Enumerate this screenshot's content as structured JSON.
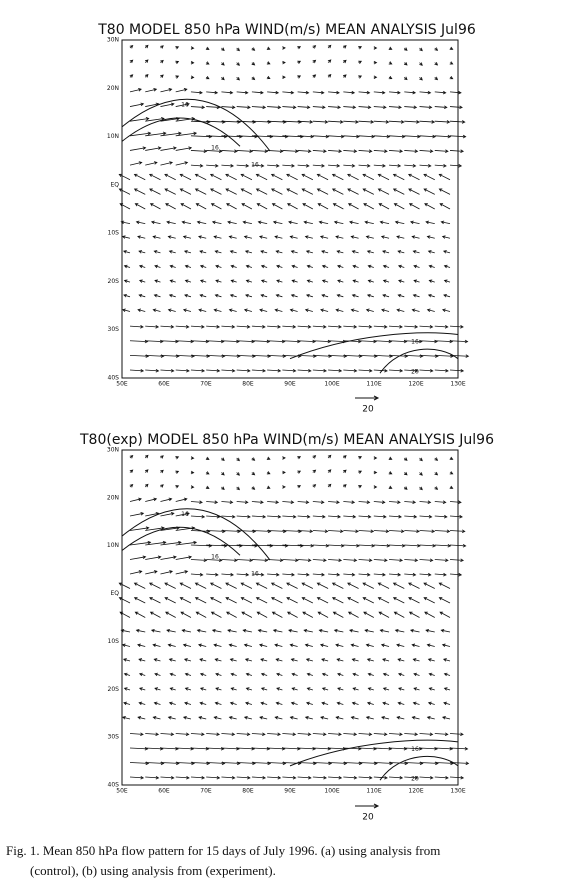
{
  "panels": [
    {
      "title": "T80 MODEL 850 hPa WIND(m/s) MEAN ANALYSIS Jul96",
      "y_labels": [
        "30N",
        "20N",
        "10N",
        "EQ",
        "10S",
        "20S",
        "30S",
        "40S"
      ],
      "x_labels": [
        "50E",
        "60E",
        "70E",
        "80E",
        "90E",
        "100E",
        "110E",
        "120E",
        "130E"
      ],
      "contour_labels": [
        "16",
        "16",
        "16",
        "16",
        "20"
      ],
      "reference_vector": "20"
    },
    {
      "title": "T80(exp) MODEL 850 hPa WIND(m/s) MEAN ANALYSIS Jul96",
      "y_labels": [
        "30N",
        "20N",
        "10N",
        "EQ",
        "10S",
        "20S",
        "30S",
        "40S"
      ],
      "x_labels": [
        "50E",
        "60E",
        "70E",
        "80E",
        "90E",
        "100E",
        "110E",
        "120E",
        "130E"
      ],
      "contour_labels": [
        "16",
        "16",
        "16",
        "16",
        "20"
      ],
      "reference_vector": "20"
    }
  ],
  "caption": [
    "Fig.  1.  Mean 850 hPa flow pattern for 15 days of July 1996.  (a) using analysis from",
    "(control), (b) using analysis from (experiment)."
  ]
}
